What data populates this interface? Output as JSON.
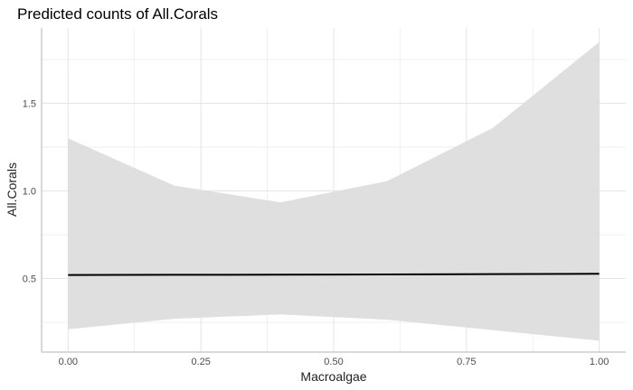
{
  "chart_data": {
    "type": "line",
    "title": "Predicted counts of All.Corals",
    "xlabel": "Macroalgae",
    "ylabel": "All.Corals",
    "xlim": [
      -0.05,
      1.05
    ],
    "ylim": [
      0.08,
      1.93
    ],
    "x_ticks": [
      0.0,
      0.25,
      0.5,
      0.75,
      1.0
    ],
    "x_tick_labels": [
      "0.00",
      "0.25",
      "0.50",
      "0.75",
      "1.00"
    ],
    "y_ticks": [
      0.5,
      1.0,
      1.5
    ],
    "y_tick_labels": [
      "0.5",
      "1.0",
      "1.5"
    ],
    "grid": true,
    "series": [
      {
        "x": [
          0.0,
          0.2,
          0.4,
          0.6,
          0.8,
          1.0
        ],
        "y": [
          0.52,
          0.521,
          0.522,
          0.523,
          0.525,
          0.527
        ],
        "lower": [
          0.21,
          0.27,
          0.295,
          0.265,
          0.205,
          0.145
        ],
        "upper": [
          1.3,
          1.03,
          0.935,
          1.055,
          1.36,
          1.85
        ]
      }
    ],
    "colors": {
      "line": "#000000",
      "band": "#dddddd",
      "grid": "#e6e6e6",
      "axis": "#b3b3b3"
    }
  }
}
